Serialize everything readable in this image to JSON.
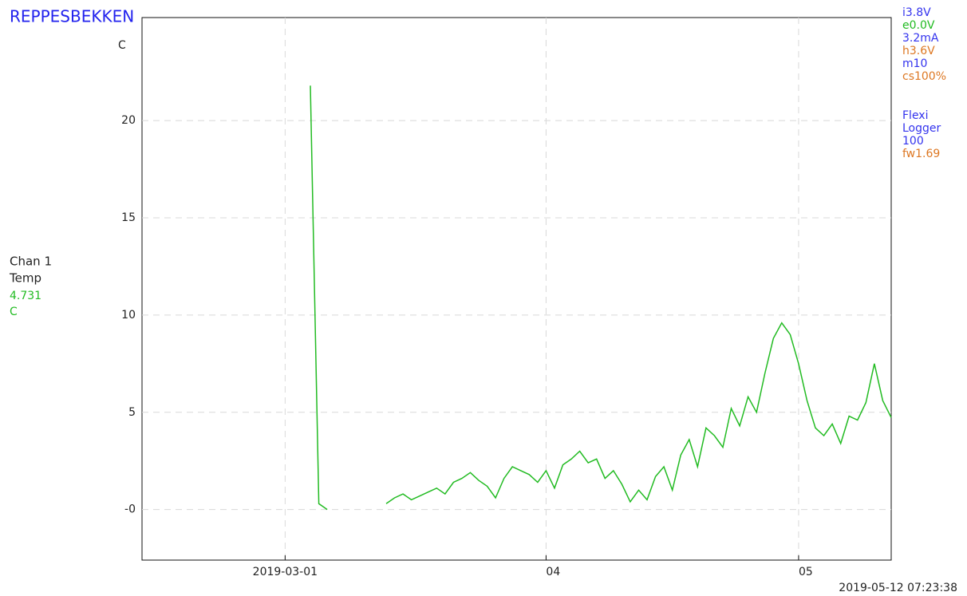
{
  "chart_data": {
    "type": "line",
    "title": "REPPESBEKKEN",
    "y_unit": "C",
    "channel": {
      "label": "Chan 1",
      "current": 4.731,
      "unit": "C"
    },
    "timestamp": "2019-05-12 07:23:38",
    "status": [
      {
        "text": "i3.8V",
        "color": "#3333ee"
      },
      {
        "text": "e0.0V",
        "color": "#22bb22"
      },
      {
        "text": "3.2mA",
        "color": "#3333ee"
      },
      {
        "text": "h3.6V",
        "color": "#dd7722"
      },
      {
        "text": "m10",
        "color": "#3333ee"
      },
      {
        "text": "cs100%",
        "color": "#dd7722"
      }
    ],
    "device": [
      {
        "text": "Flexi",
        "color": "#3333ee"
      },
      {
        "text": "Logger",
        "color": "#3333ee"
      },
      {
        "text": "100",
        "color": "#3333ee"
      },
      {
        "text": "fw1.69",
        "color": "#dd7722"
      }
    ],
    "xlim": [
      "2019-02-12",
      "2019-05-12"
    ],
    "xticks": [
      "2019-03-01",
      {
        "value": "2019-04-01",
        "label": "04"
      },
      {
        "value": "2019-05-01",
        "label": "05"
      }
    ],
    "ylim": [
      -2.6,
      25.3
    ],
    "yticks": [
      {
        "value": 0,
        "label": "-0"
      },
      5,
      10,
      15,
      20
    ],
    "grid": true,
    "x": [
      "2019-03-04",
      "2019-03-05",
      "2019-03-06",
      "2019-03-07",
      "2019-03-13",
      "2019-03-14",
      "2019-03-15",
      "2019-03-16",
      "2019-03-17",
      "2019-03-18",
      "2019-03-19",
      "2019-03-20",
      "2019-03-21",
      "2019-03-22",
      "2019-03-23",
      "2019-03-24",
      "2019-03-25",
      "2019-03-26",
      "2019-03-27",
      "2019-03-28",
      "2019-03-29",
      "2019-03-30",
      "2019-03-31",
      "2019-04-01",
      "2019-04-02",
      "2019-04-03",
      "2019-04-04",
      "2019-04-05",
      "2019-04-06",
      "2019-04-07",
      "2019-04-08",
      "2019-04-09",
      "2019-04-10",
      "2019-04-11",
      "2019-04-12",
      "2019-04-13",
      "2019-04-14",
      "2019-04-15",
      "2019-04-16",
      "2019-04-17",
      "2019-04-18",
      "2019-04-19",
      "2019-04-20",
      "2019-04-21",
      "2019-04-22",
      "2019-04-23",
      "2019-04-24",
      "2019-04-25",
      "2019-04-26",
      "2019-04-27",
      "2019-04-28",
      "2019-04-29",
      "2019-04-30",
      "2019-05-01",
      "2019-05-02",
      "2019-05-03",
      "2019-05-04",
      "2019-05-05",
      "2019-05-06",
      "2019-05-07",
      "2019-05-08",
      "2019-05-09",
      "2019-05-10",
      "2019-05-11",
      "2019-05-12"
    ],
    "series": [
      {
        "name": "Temp",
        "color": "#22bb22",
        "values": [
          21.8,
          0.3,
          0,
          null,
          0.3,
          0.6,
          0.8,
          0.5,
          0.7,
          0.9,
          1.1,
          0.8,
          1.4,
          1.6,
          1.9,
          1.5,
          1.2,
          0.6,
          1.6,
          2.2,
          2.0,
          1.8,
          1.4,
          2.0,
          1.1,
          2.3,
          2.6,
          3.0,
          2.4,
          2.6,
          1.6,
          2.0,
          1.3,
          0.4,
          1.0,
          0.5,
          1.7,
          2.2,
          1.0,
          2.8,
          3.6,
          2.2,
          4.2,
          3.8,
          3.2,
          5.2,
          4.3,
          5.8,
          5.0,
          7.0,
          8.8,
          9.6,
          9.0,
          7.5,
          5.6,
          4.2,
          3.8,
          4.4,
          3.4,
          4.8,
          4.6,
          5.5,
          7.5,
          5.6,
          4.731
        ]
      }
    ]
  }
}
